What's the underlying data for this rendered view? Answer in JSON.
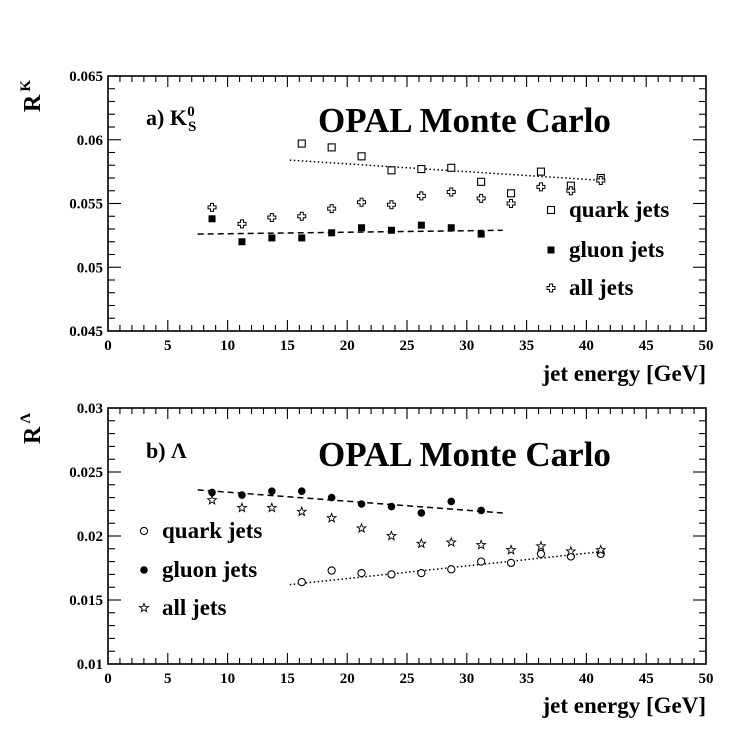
{
  "chart_data": [
    {
      "type": "scatter",
      "panel_label": "a) K",
      "panel_sub": "S",
      "panel_sup": "0",
      "title": "OPAL Monte Carlo",
      "ylabel": "R",
      "ylabel_sup": "K",
      "xlabel": "jet energy [GeV]",
      "xlim": [
        0,
        50
      ],
      "ylim": [
        0.045,
        0.065
      ],
      "xticks": [
        "0",
        "5",
        "10",
        "15",
        "20",
        "25",
        "30",
        "35",
        "40",
        "45",
        "50"
      ],
      "yticks": [
        "0.045",
        "0.05",
        "0.055",
        "0.06",
        "0.065"
      ],
      "legend_position": "right",
      "series": [
        {
          "name": "quark jets",
          "marker": "open-square",
          "x": [
            16.2,
            18.7,
            21.2,
            23.7,
            26.2,
            28.7,
            31.2,
            33.7,
            36.2,
            38.7,
            41.2
          ],
          "y": [
            0.0597,
            0.0594,
            0.0587,
            0.0576,
            0.0577,
            0.0578,
            0.0567,
            0.0558,
            0.0575,
            0.0564,
            0.057
          ],
          "fit": [
            [
              15.2,
              0.0584
            ],
            [
              41.5,
              0.0568
            ]
          ],
          "fit_style": "dotted"
        },
        {
          "name": "gluon jets",
          "marker": "filled-square",
          "x": [
            8.7,
            11.2,
            13.7,
            16.2,
            18.7,
            21.2,
            23.7,
            26.2,
            28.7,
            31.2
          ],
          "y": [
            0.0538,
            0.052,
            0.0523,
            0.0523,
            0.0527,
            0.0531,
            0.0529,
            0.0533,
            0.0531,
            0.0526
          ],
          "fit": [
            [
              7.5,
              0.0526
            ],
            [
              33.0,
              0.0529
            ]
          ],
          "fit_style": "dashed"
        },
        {
          "name": "all jets",
          "marker": "open-cross",
          "x": [
            8.7,
            11.2,
            13.7,
            16.2,
            18.7,
            21.2,
            23.7,
            26.2,
            28.7,
            31.2,
            33.7,
            36.2,
            38.7,
            41.2
          ],
          "y": [
            0.0547,
            0.0534,
            0.0539,
            0.054,
            0.0546,
            0.0551,
            0.0549,
            0.0556,
            0.0559,
            0.0554,
            0.055,
            0.0563,
            0.056,
            0.0568
          ],
          "fit": null,
          "fit_style": "none"
        }
      ]
    },
    {
      "type": "scatter",
      "panel_label": "b) Λ",
      "panel_sub": "",
      "panel_sup": "",
      "title": "OPAL Monte Carlo",
      "ylabel": "R",
      "ylabel_sup": "Λ",
      "xlabel": "jet energy [GeV]",
      "xlim": [
        0,
        50
      ],
      "ylim": [
        0.01,
        0.03
      ],
      "xticks": [
        "0",
        "5",
        "10",
        "15",
        "20",
        "25",
        "30",
        "35",
        "40",
        "45",
        "50"
      ],
      "yticks": [
        "0.01",
        "0.015",
        "0.02",
        "0.025",
        "0.03"
      ],
      "legend_position": "left",
      "series": [
        {
          "name": "quark jets",
          "marker": "open-circle",
          "x": [
            16.2,
            18.7,
            21.2,
            23.7,
            26.2,
            28.7,
            31.2,
            33.7,
            36.2,
            38.7,
            41.2
          ],
          "y": [
            0.0164,
            0.0173,
            0.0171,
            0.017,
            0.0171,
            0.0174,
            0.018,
            0.0179,
            0.0186,
            0.0184,
            0.0186
          ],
          "fit": [
            [
              15.2,
              0.0162
            ],
            [
              41.5,
              0.0188
            ]
          ],
          "fit_style": "dotted"
        },
        {
          "name": "gluon jets",
          "marker": "filled-circle",
          "x": [
            8.7,
            11.2,
            13.7,
            16.2,
            18.7,
            21.2,
            23.7,
            26.2,
            28.7,
            31.2
          ],
          "y": [
            0.0234,
            0.0232,
            0.0235,
            0.0235,
            0.023,
            0.0225,
            0.0223,
            0.0218,
            0.0227,
            0.022
          ],
          "fit": [
            [
              7.5,
              0.0236
            ],
            [
              33.0,
              0.0218
            ]
          ],
          "fit_style": "dashed"
        },
        {
          "name": "all jets",
          "marker": "star",
          "x": [
            8.7,
            11.2,
            13.7,
            16.2,
            18.7,
            21.2,
            23.7,
            26.2,
            28.7,
            31.2,
            33.7,
            36.2,
            38.7,
            41.2
          ],
          "y": [
            0.0228,
            0.0222,
            0.0222,
            0.0219,
            0.0214,
            0.0206,
            0.02,
            0.0194,
            0.0195,
            0.0193,
            0.0189,
            0.0192,
            0.0188,
            0.0189
          ],
          "fit": null,
          "fit_style": "none"
        }
      ]
    }
  ]
}
